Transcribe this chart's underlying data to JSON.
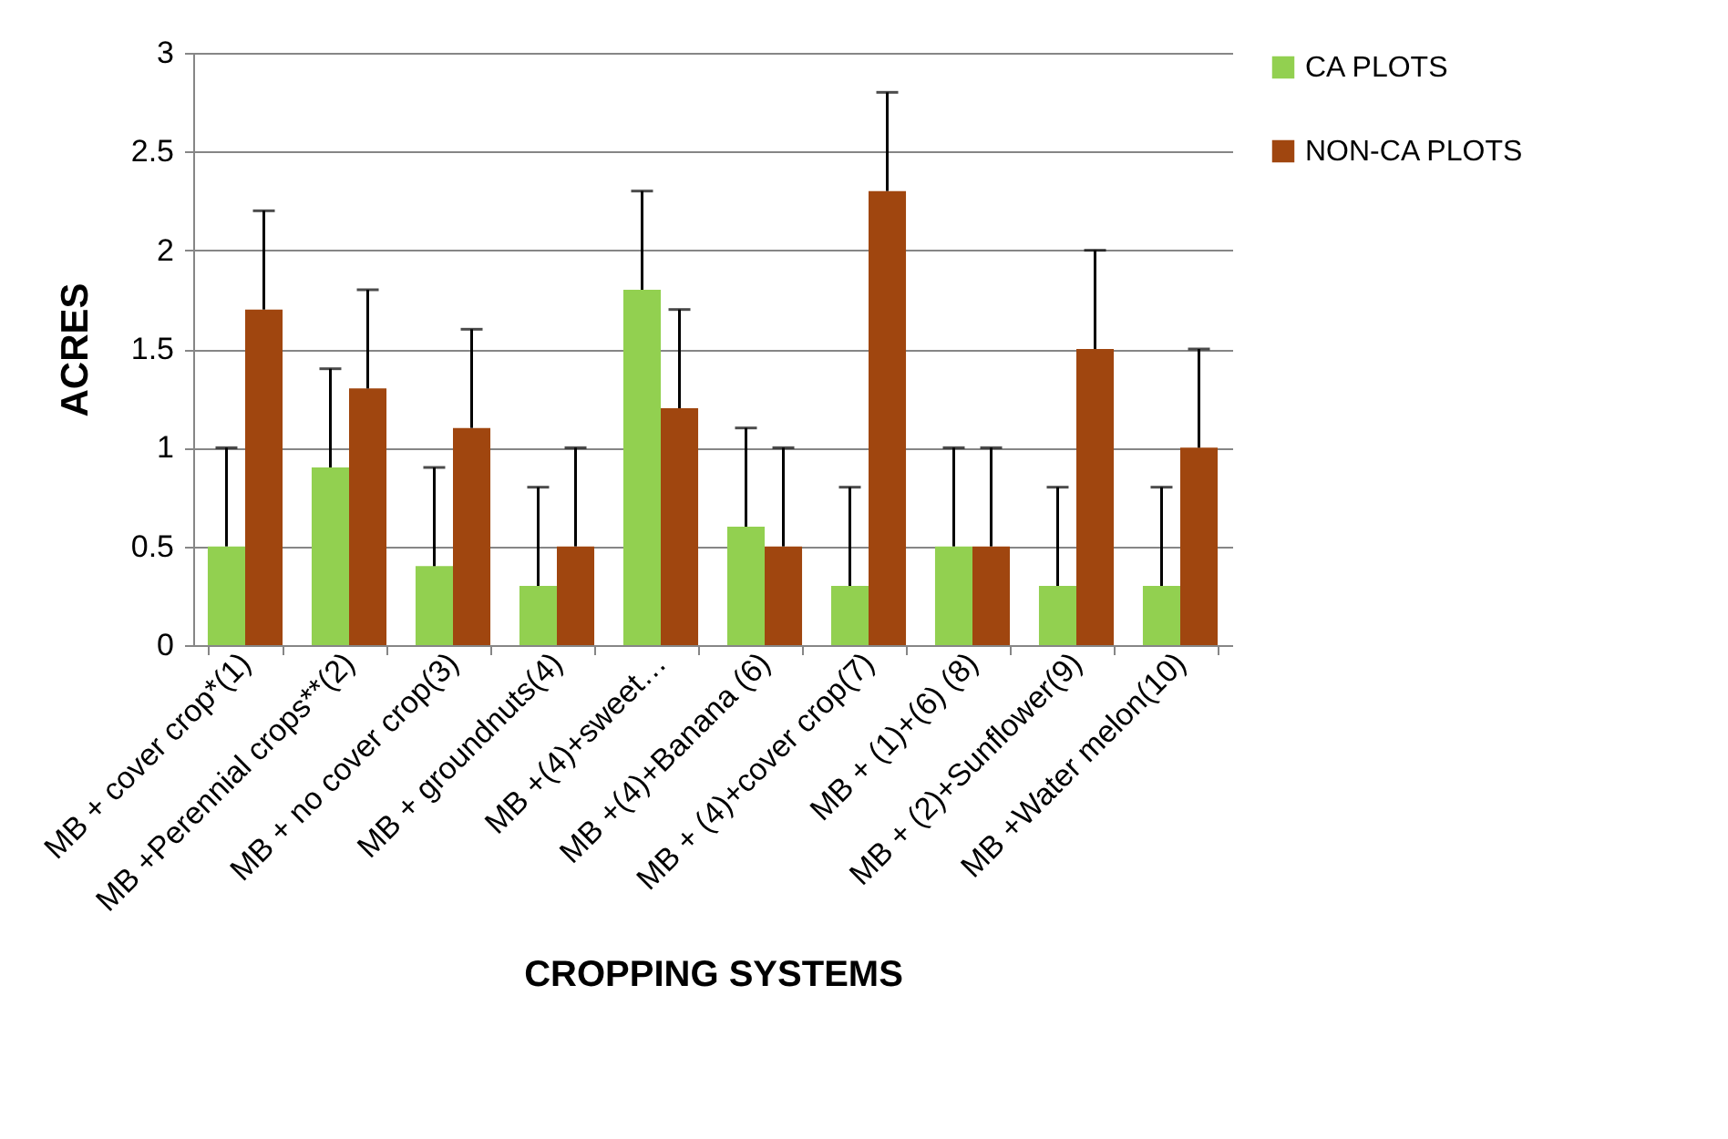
{
  "chart_data": {
    "type": "bar",
    "xlabel": "CROPPING SYSTEMS",
    "ylabel": "ACRES",
    "categories": [
      "MB + cover crop*(1)",
      "MB +Perennial crops**(2)",
      "MB + no cover crop(3)",
      "MB + groundnuts(4)",
      "MB +(4)+sweet…",
      "MB +(4)+Banana (6)",
      "MB + (4)+cover crop(7)",
      "MB + (1)+(6) (8)",
      "MB + (2)+Sunflower(9)",
      "MB +Water melon(10)"
    ],
    "series": [
      {
        "name": "CA PLOTS",
        "color": "#92d050",
        "values": [
          0.5,
          0.9,
          0.4,
          0.3,
          1.8,
          0.6,
          0.3,
          0.5,
          0.3,
          0.3
        ],
        "errors": [
          [
            0.5,
            1.0
          ],
          [
            0.9,
            1.4
          ],
          [
            0.4,
            0.9
          ],
          [
            0.3,
            0.8
          ],
          [
            1.8,
            2.3
          ],
          [
            0.6,
            1.1
          ],
          [
            0.3,
            0.8
          ],
          [
            0.5,
            1.0
          ],
          [
            0.3,
            0.8
          ],
          [
            0.3,
            0.8
          ]
        ]
      },
      {
        "name": "NON-CA PLOTS",
        "color": "#a0460f",
        "values": [
          1.7,
          1.3,
          1.1,
          0.5,
          1.2,
          0.5,
          2.3,
          0.5,
          1.5,
          1.0
        ],
        "errors": [
          [
            1.7,
            2.2
          ],
          [
            1.3,
            1.8
          ],
          [
            1.1,
            1.6
          ],
          [
            0.5,
            1.0
          ],
          [
            1.2,
            1.7
          ],
          [
            0.5,
            1.0
          ],
          [
            2.3,
            2.8
          ],
          [
            0.5,
            1.0
          ],
          [
            1.5,
            2.0
          ],
          [
            1.0,
            1.5
          ]
        ]
      }
    ],
    "ylim": [
      0,
      3
    ],
    "yticks": [
      0,
      0.5,
      1,
      1.5,
      2,
      2.5,
      3
    ],
    "grid": "y",
    "legend": "right"
  }
}
